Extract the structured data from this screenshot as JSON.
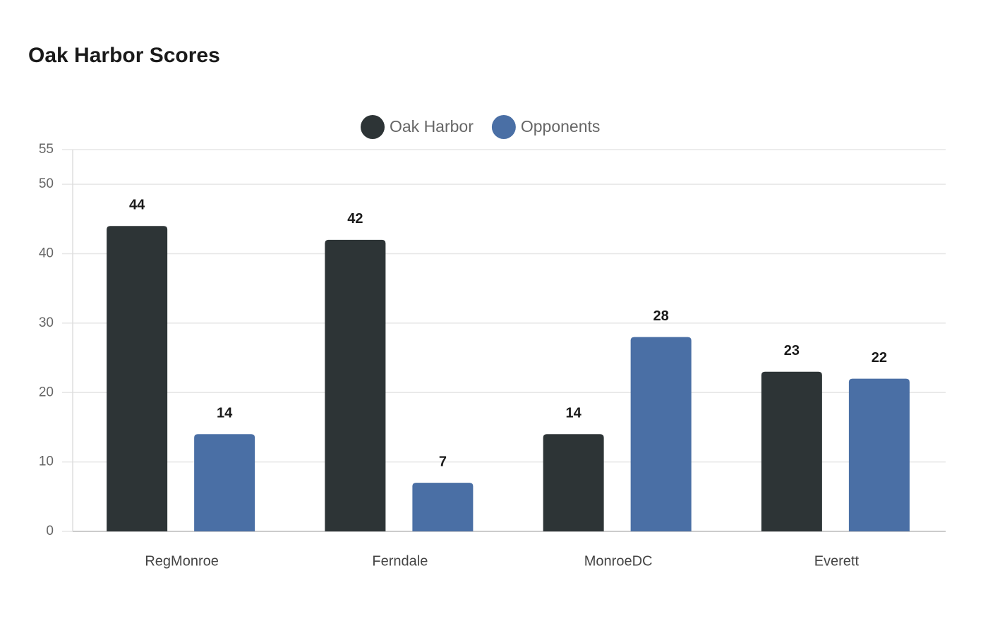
{
  "chart_data": {
    "type": "bar",
    "title": "Oak Harbor Scores",
    "categories": [
      "RegMonroe",
      "Ferndale",
      "MonroeDC",
      "Everett"
    ],
    "series": [
      {
        "name": "Oak Harbor",
        "color": "#2d3436",
        "values": [
          44,
          42,
          14,
          23
        ]
      },
      {
        "name": "Opponents",
        "color": "#4a6fa5",
        "values": [
          14,
          7,
          28,
          22
        ]
      }
    ],
    "ylim": [
      0,
      55
    ],
    "yticks": [
      0,
      10,
      20,
      30,
      40,
      50,
      55
    ],
    "grid": true,
    "legend": "top"
  }
}
